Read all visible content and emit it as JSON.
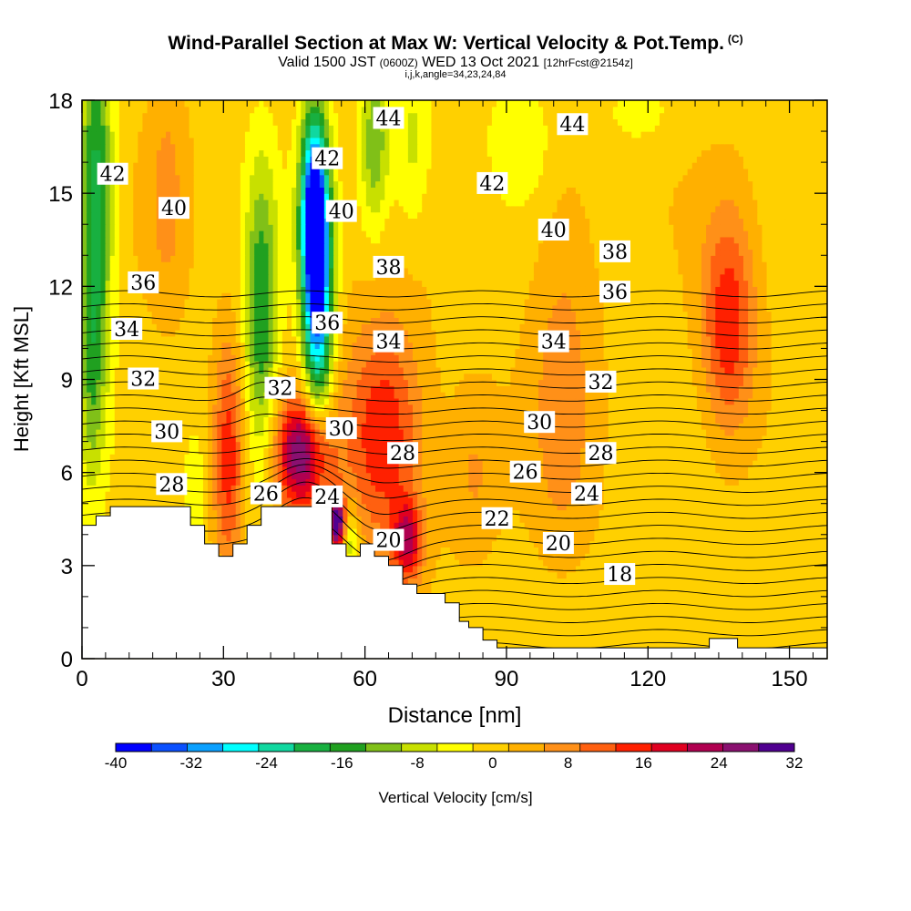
{
  "title": "Wind-Parallel Section at Max W: Vertical Velocity & Pot.Temp.",
  "title_mark": "(C)",
  "subtitle": {
    "prefix": "Valid 1500 JST",
    "zulu": "(0600Z)",
    "date": "WED 13 Oct 2021",
    "forecast": "[12hrFcst@2154z]"
  },
  "indices_line": "i,j,k,angle=34,23,24,84",
  "chart_data": {
    "type": "heatmap",
    "title": "Wind-Parallel Section at Max W: Vertical Velocity & Pot.Temp.",
    "xlabel": "Distance [nm]",
    "ylabel": "Height [Kft MSL]",
    "xlim": [
      0,
      158
    ],
    "ylim": [
      0,
      18
    ],
    "x_ticks": [
      "0",
      "30",
      "60",
      "90",
      "120",
      "150"
    ],
    "y_ticks": [
      "0",
      "3",
      "6",
      "9",
      "12",
      "15",
      "18"
    ],
    "colorbar": {
      "label": "Vertical Velocity [cm/s]",
      "tick_labels": [
        "-40",
        "-32",
        "-24",
        "-16",
        "-8",
        "0",
        "8",
        "16",
        "24",
        "32"
      ],
      "min": -40,
      "max": 32,
      "step": 4,
      "colors": [
        "#0000ff",
        "#0a50ff",
        "#0aa0ff",
        "#00ffff",
        "#10d8a0",
        "#18b040",
        "#20a020",
        "#80c018",
        "#c8e000",
        "#ffff00",
        "#ffd000",
        "#ffb000",
        "#ff9018",
        "#ff6010",
        "#ff2000",
        "#e00020",
        "#b00050",
        "#8a1070",
        "#500090"
      ]
    },
    "velocity_features": [
      {
        "x": 47,
        "y": 6.6,
        "peak": 30,
        "sx": 4,
        "sy": 1.3
      },
      {
        "x": 54,
        "y": 4.4,
        "peak": 34,
        "sx": 1.2,
        "sy": 0.6
      },
      {
        "x": 64,
        "y": 7.2,
        "peak": 18,
        "sx": 6,
        "sy": 2.6
      },
      {
        "x": 69,
        "y": 3.8,
        "peak": 20,
        "sx": 2.2,
        "sy": 0.9
      },
      {
        "x": 31,
        "y": 6.5,
        "peak": 16,
        "sx": 2.2,
        "sy": 2.6
      },
      {
        "x": 137,
        "y": 10.8,
        "peak": 17,
        "sx": 4,
        "sy": 2.5
      },
      {
        "x": 102,
        "y": 9.0,
        "peak": 7,
        "sx": 5,
        "sy": 5
      },
      {
        "x": 83,
        "y": 6.0,
        "peak": 6,
        "sx": 4,
        "sy": 2
      },
      {
        "x": 18,
        "y": 15.0,
        "peak": 6,
        "sx": 3,
        "sy": 3
      },
      {
        "x": 50,
        "y": 12.0,
        "peak": -36,
        "sx": 2.2,
        "sy": 3.2
      },
      {
        "x": 49,
        "y": 14.5,
        "peak": -28,
        "sx": 2.0,
        "sy": 2.2
      },
      {
        "x": 38,
        "y": 11.0,
        "peak": -18,
        "sx": 2.5,
        "sy": 3.5
      },
      {
        "x": 3,
        "y": 15.0,
        "peak": -20,
        "sx": 2.5,
        "sy": 4
      },
      {
        "x": 2,
        "y": 9.0,
        "peak": -10,
        "sx": 2,
        "sy": 3
      },
      {
        "x": 62,
        "y": 16.5,
        "peak": -14,
        "sx": 2.2,
        "sy": 2
      },
      {
        "x": 70,
        "y": 16.5,
        "peak": -8,
        "sx": 3,
        "sy": 2
      },
      {
        "x": 93,
        "y": 16.8,
        "peak": -6,
        "sx": 5,
        "sy": 1.5
      },
      {
        "x": 57,
        "y": 3.8,
        "peak": -12,
        "sx": 1.2,
        "sy": 0.8
      },
      {
        "x": 24,
        "y": 5.0,
        "peak": -6,
        "sx": 1.5,
        "sy": 1.5
      },
      {
        "x": 118,
        "y": 17.6,
        "peak": -6,
        "sx": 4,
        "sy": 0.6
      },
      {
        "x": 115,
        "y": 1.2,
        "peak": -2,
        "sx": 25,
        "sy": 1.5
      }
    ],
    "terrain": [
      [
        0,
        4.3
      ],
      [
        3,
        4.3
      ],
      [
        3,
        4.6
      ],
      [
        6,
        4.6
      ],
      [
        6,
        4.9
      ],
      [
        23,
        4.9
      ],
      [
        23,
        4.3
      ],
      [
        26,
        4.3
      ],
      [
        26,
        3.7
      ],
      [
        29,
        3.7
      ],
      [
        29,
        3.3
      ],
      [
        32,
        3.3
      ],
      [
        32,
        3.7
      ],
      [
        35,
        3.7
      ],
      [
        35,
        4.3
      ],
      [
        38,
        4.3
      ],
      [
        38,
        4.9
      ],
      [
        53,
        4.9
      ],
      [
        53,
        3.7
      ],
      [
        56,
        3.7
      ],
      [
        56,
        3.3
      ],
      [
        59,
        3.3
      ],
      [
        59,
        3.7
      ],
      [
        62,
        3.7
      ],
      [
        62,
        3.3
      ],
      [
        65,
        3.3
      ],
      [
        65,
        3.0
      ],
      [
        68,
        3.0
      ],
      [
        68,
        2.4
      ],
      [
        71,
        2.4
      ],
      [
        71,
        2.1
      ],
      [
        77,
        2.1
      ],
      [
        77,
        1.8
      ],
      [
        80,
        1.8
      ],
      [
        80,
        1.2
      ],
      [
        82,
        1.2
      ],
      [
        82,
        1.0
      ],
      [
        85,
        1.0
      ],
      [
        85,
        0.6
      ],
      [
        88,
        0.6
      ],
      [
        88,
        0.35
      ],
      [
        133,
        0.35
      ],
      [
        133,
        0.65
      ],
      [
        139,
        0.65
      ],
      [
        139,
        0.35
      ],
      [
        158,
        0.35
      ],
      [
        158,
        0
      ],
      [
        0,
        0
      ]
    ],
    "theta_levels": [
      18,
      19,
      20,
      21,
      22,
      23,
      24,
      25,
      26,
      27,
      28,
      29,
      30,
      31,
      32,
      33,
      34,
      35,
      36,
      37,
      38,
      39,
      40,
      41,
      42,
      43,
      44,
      45
    ],
    "contour_labels": [
      {
        "text": "44",
        "x": 65,
        "y": 17.4
      },
      {
        "text": "44",
        "x": 104,
        "y": 17.2
      },
      {
        "text": "42",
        "x": 6.5,
        "y": 15.6
      },
      {
        "text": "42",
        "x": 52,
        "y": 16.1
      },
      {
        "text": "42",
        "x": 87,
        "y": 15.3
      },
      {
        "text": "40",
        "x": 19.5,
        "y": 14.5
      },
      {
        "text": "40",
        "x": 55,
        "y": 14.4
      },
      {
        "text": "40",
        "x": 100,
        "y": 13.8
      },
      {
        "text": "38",
        "x": 65,
        "y": 12.6
      },
      {
        "text": "38",
        "x": 113,
        "y": 13.1
      },
      {
        "text": "36",
        "x": 13,
        "y": 12.1
      },
      {
        "text": "36",
        "x": 52,
        "y": 10.8
      },
      {
        "text": "36",
        "x": 113,
        "y": 11.8
      },
      {
        "text": "34",
        "x": 9.5,
        "y": 10.6
      },
      {
        "text": "34",
        "x": 65,
        "y": 10.2
      },
      {
        "text": "34",
        "x": 100,
        "y": 10.2
      },
      {
        "text": "32",
        "x": 13,
        "y": 9.0
      },
      {
        "text": "32",
        "x": 42,
        "y": 8.7
      },
      {
        "text": "32",
        "x": 110,
        "y": 8.9
      },
      {
        "text": "30",
        "x": 18,
        "y": 7.3
      },
      {
        "text": "30",
        "x": 55,
        "y": 7.4
      },
      {
        "text": "30",
        "x": 97,
        "y": 7.6
      },
      {
        "text": "28",
        "x": 19,
        "y": 5.6
      },
      {
        "text": "28",
        "x": 68,
        "y": 6.6
      },
      {
        "text": "28",
        "x": 110,
        "y": 6.6
      },
      {
        "text": "26",
        "x": 39,
        "y": 5.3
      },
      {
        "text": "26",
        "x": 94,
        "y": 6.0
      },
      {
        "text": "24",
        "x": 52,
        "y": 5.2
      },
      {
        "text": "24",
        "x": 107,
        "y": 5.3
      },
      {
        "text": "22",
        "x": 88,
        "y": 4.5
      },
      {
        "text": "20",
        "x": 65,
        "y": 3.8
      },
      {
        "text": "20",
        "x": 101,
        "y": 3.7
      },
      {
        "text": "18",
        "x": 114,
        "y": 2.7
      }
    ]
  }
}
